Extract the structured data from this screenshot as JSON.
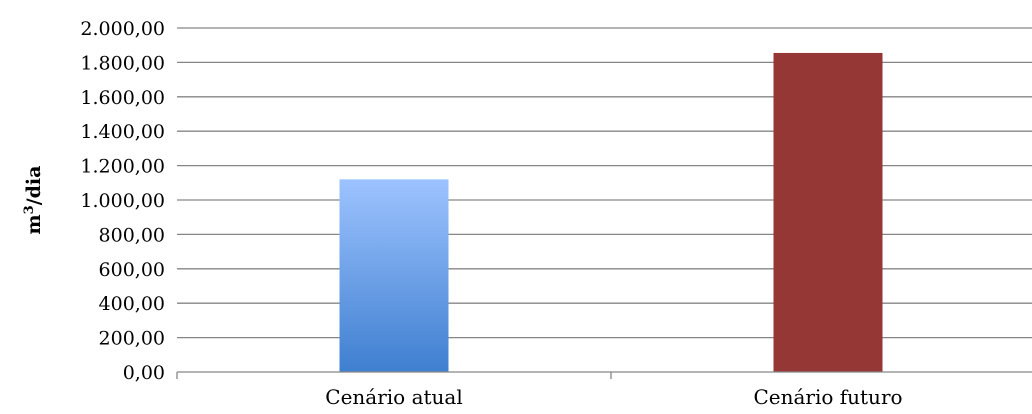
{
  "chart_data": {
    "type": "bar",
    "categories": [
      "Cenário atual",
      "Cenário futuro"
    ],
    "values": [
      1120,
      1855
    ],
    "ylabel": "m³/dia",
    "ylabel_parts": {
      "base": "m",
      "sup": "3",
      "rest": "/dia"
    },
    "xlabel": "",
    "ylim": [
      0,
      2000
    ],
    "yticks": [
      0,
      200,
      400,
      600,
      800,
      1000,
      1200,
      1400,
      1600,
      1800,
      2000
    ],
    "ytick_labels": [
      "0,00",
      "200,00",
      "400,00",
      "600,00",
      "800,00",
      "1.000,00",
      "1.200,00",
      "1.400,00",
      "1.600,00",
      "1.800,00",
      "2.000,00"
    ],
    "grid": true,
    "legend": "none",
    "colors": {
      "bar1_top": "#9DC3FF",
      "bar1_bottom": "#3F7FD0",
      "bar2": "#953735",
      "grid": "#868686"
    }
  }
}
